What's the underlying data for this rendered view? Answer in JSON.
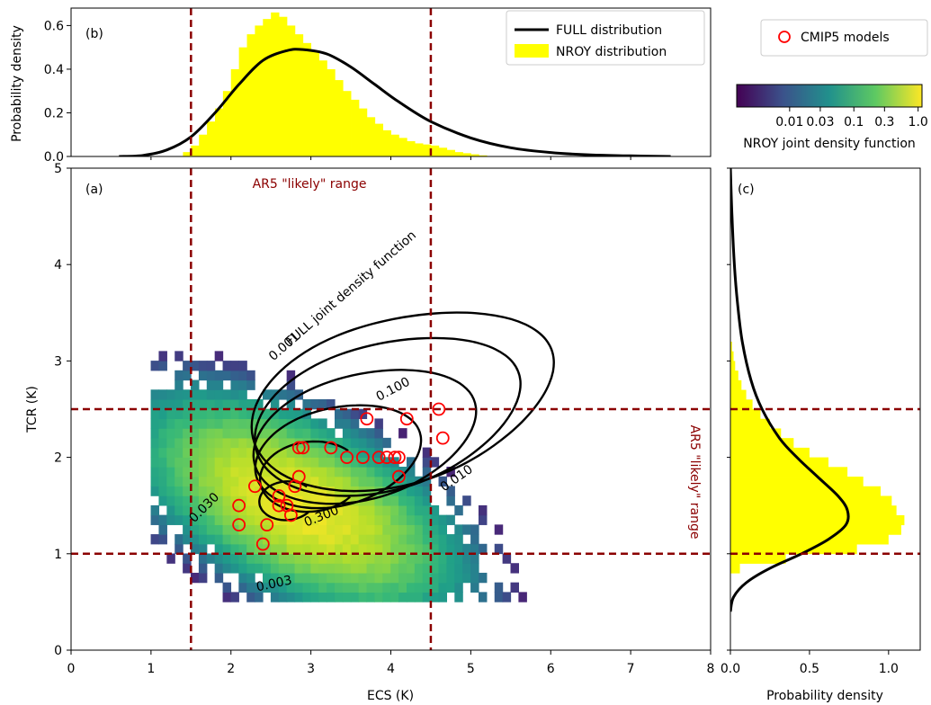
{
  "chart_data": [
    {
      "panel": "b",
      "type": "area",
      "panel_label": "(b)",
      "ylabel": "Probability density",
      "xlim": [
        0,
        8
      ],
      "ylim": [
        0,
        0.68
      ],
      "yticks": [
        "0.0",
        "0.2",
        "0.4",
        "0.6"
      ],
      "grid": false,
      "legend_position": "top-right",
      "series": [
        {
          "name": "FULL distribution",
          "kind": "line",
          "color": "#000000",
          "x": [
            0.6,
            0.9,
            1.2,
            1.5,
            1.8,
            2.1,
            2.4,
            2.7,
            2.9,
            3.2,
            3.5,
            3.8,
            4.1,
            4.5,
            5.0,
            5.5,
            6.0,
            6.5,
            7.0,
            7.5
          ],
          "y": [
            0.0,
            0.005,
            0.03,
            0.09,
            0.2,
            0.33,
            0.44,
            0.485,
            0.49,
            0.47,
            0.41,
            0.33,
            0.25,
            0.16,
            0.085,
            0.04,
            0.018,
            0.007,
            0.003,
            0.0
          ]
        },
        {
          "name": "NROY distribution",
          "kind": "histogram",
          "color": "#ffff00",
          "bin_width": 0.1,
          "x": [
            1.4,
            1.5,
            1.6,
            1.7,
            1.8,
            1.9,
            2.0,
            2.1,
            2.2,
            2.3,
            2.4,
            2.5,
            2.6,
            2.7,
            2.8,
            2.9,
            3.0,
            3.1,
            3.2,
            3.3,
            3.4,
            3.5,
            3.6,
            3.7,
            3.8,
            3.9,
            4.0,
            4.1,
            4.2,
            4.3,
            4.4,
            4.5,
            4.6,
            4.7,
            4.8,
            4.9,
            5.0,
            5.1
          ],
          "y": [
            0.02,
            0.05,
            0.1,
            0.16,
            0.22,
            0.3,
            0.4,
            0.5,
            0.56,
            0.6,
            0.63,
            0.66,
            0.64,
            0.6,
            0.56,
            0.52,
            0.48,
            0.44,
            0.4,
            0.35,
            0.3,
            0.26,
            0.22,
            0.18,
            0.15,
            0.12,
            0.1,
            0.085,
            0.07,
            0.06,
            0.055,
            0.05,
            0.04,
            0.03,
            0.02,
            0.015,
            0.01,
            0.005
          ]
        }
      ],
      "legend": [
        "FULL distribution",
        "NROY distribution"
      ],
      "vlines": [
        1.5,
        4.5
      ]
    },
    {
      "panel": "a",
      "type": "heatmap",
      "panel_label": "(a)",
      "xlabel": "ECS (K)",
      "ylabel": "TCR (K)",
      "xlim": [
        0,
        8
      ],
      "ylim": [
        0,
        5
      ],
      "xticks": [
        "0",
        "1",
        "2",
        "3",
        "4",
        "5",
        "6",
        "7",
        "8"
      ],
      "yticks": [
        "0",
        "1",
        "2",
        "3",
        "4",
        "5"
      ],
      "grid": false,
      "colormap": "viridis",
      "range_label_top": "AR5 \"likely\" range",
      "range_label_right": "AR5 \"likely\" range",
      "vlines": [
        1.5,
        4.5
      ],
      "hlines": [
        1.0,
        2.5
      ],
      "line_color": "#8b0000",
      "contour_title": "FULL joint density function",
      "contour_levels": [
        {
          "level": 0.001,
          "label": "0.001"
        },
        {
          "level": 0.003,
          "label": "0.003"
        },
        {
          "level": 0.01,
          "label": "0.010"
        },
        {
          "level": 0.03,
          "label": "0.030"
        },
        {
          "level": 0.1,
          "label": "0.100"
        },
        {
          "level": 0.3,
          "label": "0.300"
        }
      ],
      "cmip5_models": {
        "name": "CMIP5 models",
        "color": "#ff0000",
        "x": [
          2.1,
          2.1,
          2.4,
          2.45,
          2.3,
          2.6,
          2.6,
          2.7,
          2.75,
          2.8,
          2.85,
          2.9,
          2.85,
          3.25,
          3.45,
          3.65,
          3.7,
          3.85,
          3.95,
          4.05,
          4.1,
          4.2,
          4.6,
          4.65,
          4.1
        ],
        "y": [
          1.3,
          1.5,
          1.1,
          1.3,
          1.7,
          1.6,
          1.5,
          1.5,
          1.4,
          1.7,
          1.8,
          2.1,
          2.1,
          2.1,
          2.0,
          2.0,
          2.4,
          2.0,
          2.0,
          2.0,
          1.8,
          2.4,
          2.5,
          2.2,
          2.0
        ]
      }
    },
    {
      "panel": "c",
      "type": "area",
      "panel_label": "(c)",
      "xlabel": "Probability density",
      "xlim": [
        0,
        1.2
      ],
      "xticks": [
        "0.0",
        "0.5",
        "1.0"
      ],
      "ylim": [
        0,
        5
      ],
      "grid": false,
      "series": [
        {
          "name": "FULL distribution",
          "kind": "line",
          "color": "#000000",
          "tcr": [
            0.4,
            0.55,
            0.7,
            0.85,
            1.0,
            1.15,
            1.3,
            1.45,
            1.6,
            1.8,
            2.0,
            2.2,
            2.5,
            2.8,
            3.2,
            3.6,
            4.0,
            4.5,
            5.0
          ],
          "density": [
            0.0,
            0.02,
            0.1,
            0.25,
            0.45,
            0.62,
            0.73,
            0.74,
            0.68,
            0.55,
            0.42,
            0.31,
            0.2,
            0.13,
            0.075,
            0.045,
            0.025,
            0.01,
            0.0
          ]
        },
        {
          "name": "NROY distribution",
          "kind": "histogram",
          "color": "#ffff00",
          "bin_height": 0.1,
          "tcr": [
            0.8,
            0.9,
            1.0,
            1.1,
            1.2,
            1.3,
            1.4,
            1.5,
            1.6,
            1.7,
            1.8,
            1.9,
            2.0,
            2.1,
            2.2,
            2.3,
            2.4,
            2.5,
            2.6,
            2.7,
            2.8,
            2.9,
            3.0,
            3.1
          ],
          "density": [
            0.06,
            0.35,
            0.8,
            1.0,
            1.08,
            1.1,
            1.05,
            1.02,
            0.95,
            0.84,
            0.74,
            0.62,
            0.5,
            0.4,
            0.32,
            0.25,
            0.19,
            0.14,
            0.1,
            0.07,
            0.05,
            0.03,
            0.02,
            0.01
          ]
        }
      ],
      "hlines": [
        1.0,
        2.5
      ]
    },
    {
      "panel": "colorbar",
      "type": "heatmap",
      "title": "NROY joint density function",
      "tick_values": [
        0.01,
        0.03,
        0.1,
        0.3,
        1.0
      ],
      "tick_labels": [
        "0.01",
        "0.03",
        "0.1",
        "0.3",
        "1.0"
      ],
      "range": [
        0.0015,
        1.15
      ],
      "scale": "log",
      "cmip5_legend_label": "CMIP5 models"
    }
  ]
}
